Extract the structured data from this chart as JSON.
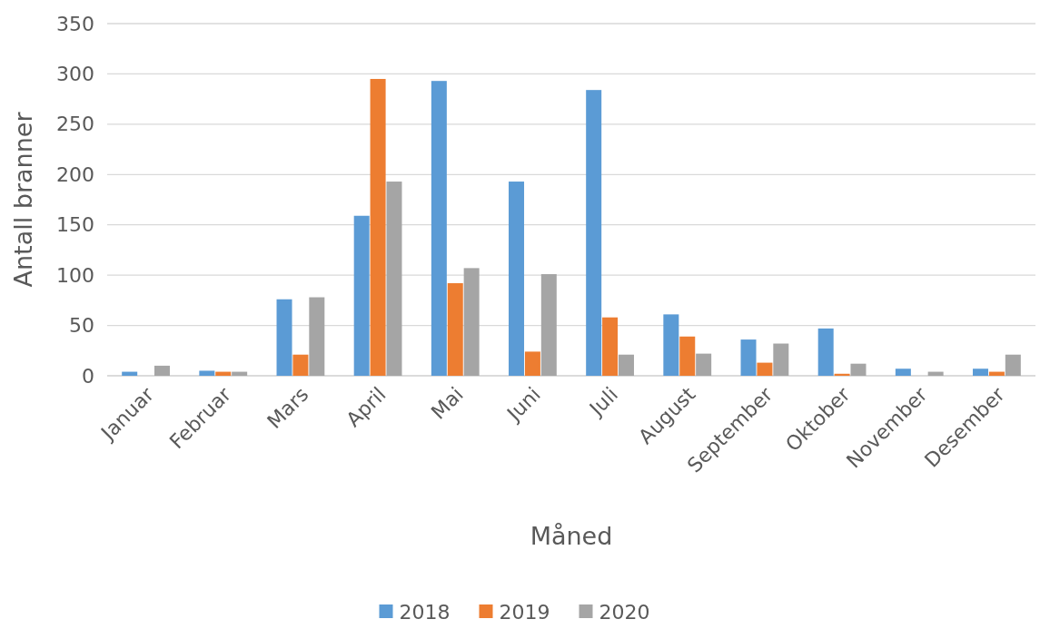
{
  "chart_data": {
    "type": "bar",
    "xlabel": "Måned",
    "ylabel": "Antall branner",
    "categories": [
      "Januar",
      "Februar",
      "Mars",
      "April",
      "Mai",
      "Juni",
      "Juli",
      "August",
      "September",
      "Oktober",
      "November",
      "Desember"
    ],
    "series": [
      {
        "name": "2018",
        "color": "#5b9bd5",
        "values": [
          4,
          5,
          76,
          159,
          293,
          193,
          284,
          61,
          36,
          47,
          7,
          7
        ]
      },
      {
        "name": "2019",
        "color": "#ed7d31",
        "values": [
          0,
          4,
          21,
          295,
          92,
          24,
          58,
          39,
          13,
          2,
          0,
          4
        ]
      },
      {
        "name": "2020",
        "color": "#a5a5a5",
        "values": [
          10,
          4,
          78,
          193,
          107,
          101,
          21,
          22,
          32,
          12,
          4,
          21
        ]
      }
    ],
    "ylim": [
      0,
      350
    ],
    "yticks": [
      0,
      50,
      100,
      150,
      200,
      250,
      300,
      350
    ],
    "grid": "y",
    "legend": "bottom"
  }
}
